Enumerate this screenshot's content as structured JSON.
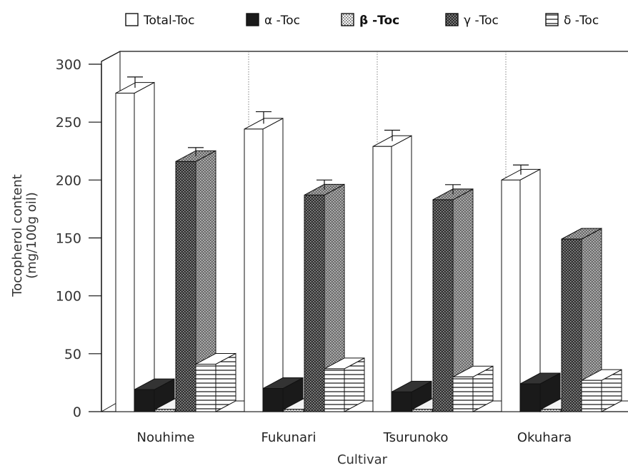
{
  "chart_data": {
    "type": "bar",
    "categories": [
      "Nouhime",
      "Fukunari",
      "Tsurunoko",
      "Okuhara"
    ],
    "series": [
      {
        "name": "Total-Toc",
        "values": [
          275,
          244,
          229,
          200
        ],
        "errors": [
          14,
          15,
          14,
          13
        ]
      },
      {
        "name": "α -Toc",
        "values": [
          19,
          20,
          17,
          24
        ]
      },
      {
        "name": "β -Toc",
        "values": [
          2,
          2,
          2,
          2
        ]
      },
      {
        "name": "γ -Toc",
        "values": [
          216,
          187,
          183,
          149
        ],
        "errors": [
          12,
          13,
          13,
          null
        ]
      },
      {
        "name": "δ -Toc",
        "values": [
          41,
          37,
          30,
          27
        ]
      }
    ],
    "xlabel": "Cultivar",
    "ylabel_line1": "Tocopherol content",
    "ylabel_line2": "(mg/100g oil)",
    "ylim": [
      0,
      300
    ],
    "yticks": [
      "0",
      "50",
      "100",
      "150",
      "200",
      "250",
      "300"
    ],
    "legend_position": "top",
    "three_d": true,
    "grid": false,
    "colors": {
      "total": "#ffffff",
      "alpha": "#1a1a1a",
      "beta": "#e6e6e6",
      "gamma": "#4a4a4a",
      "delta": "#ffffff",
      "line": "#111111"
    }
  }
}
